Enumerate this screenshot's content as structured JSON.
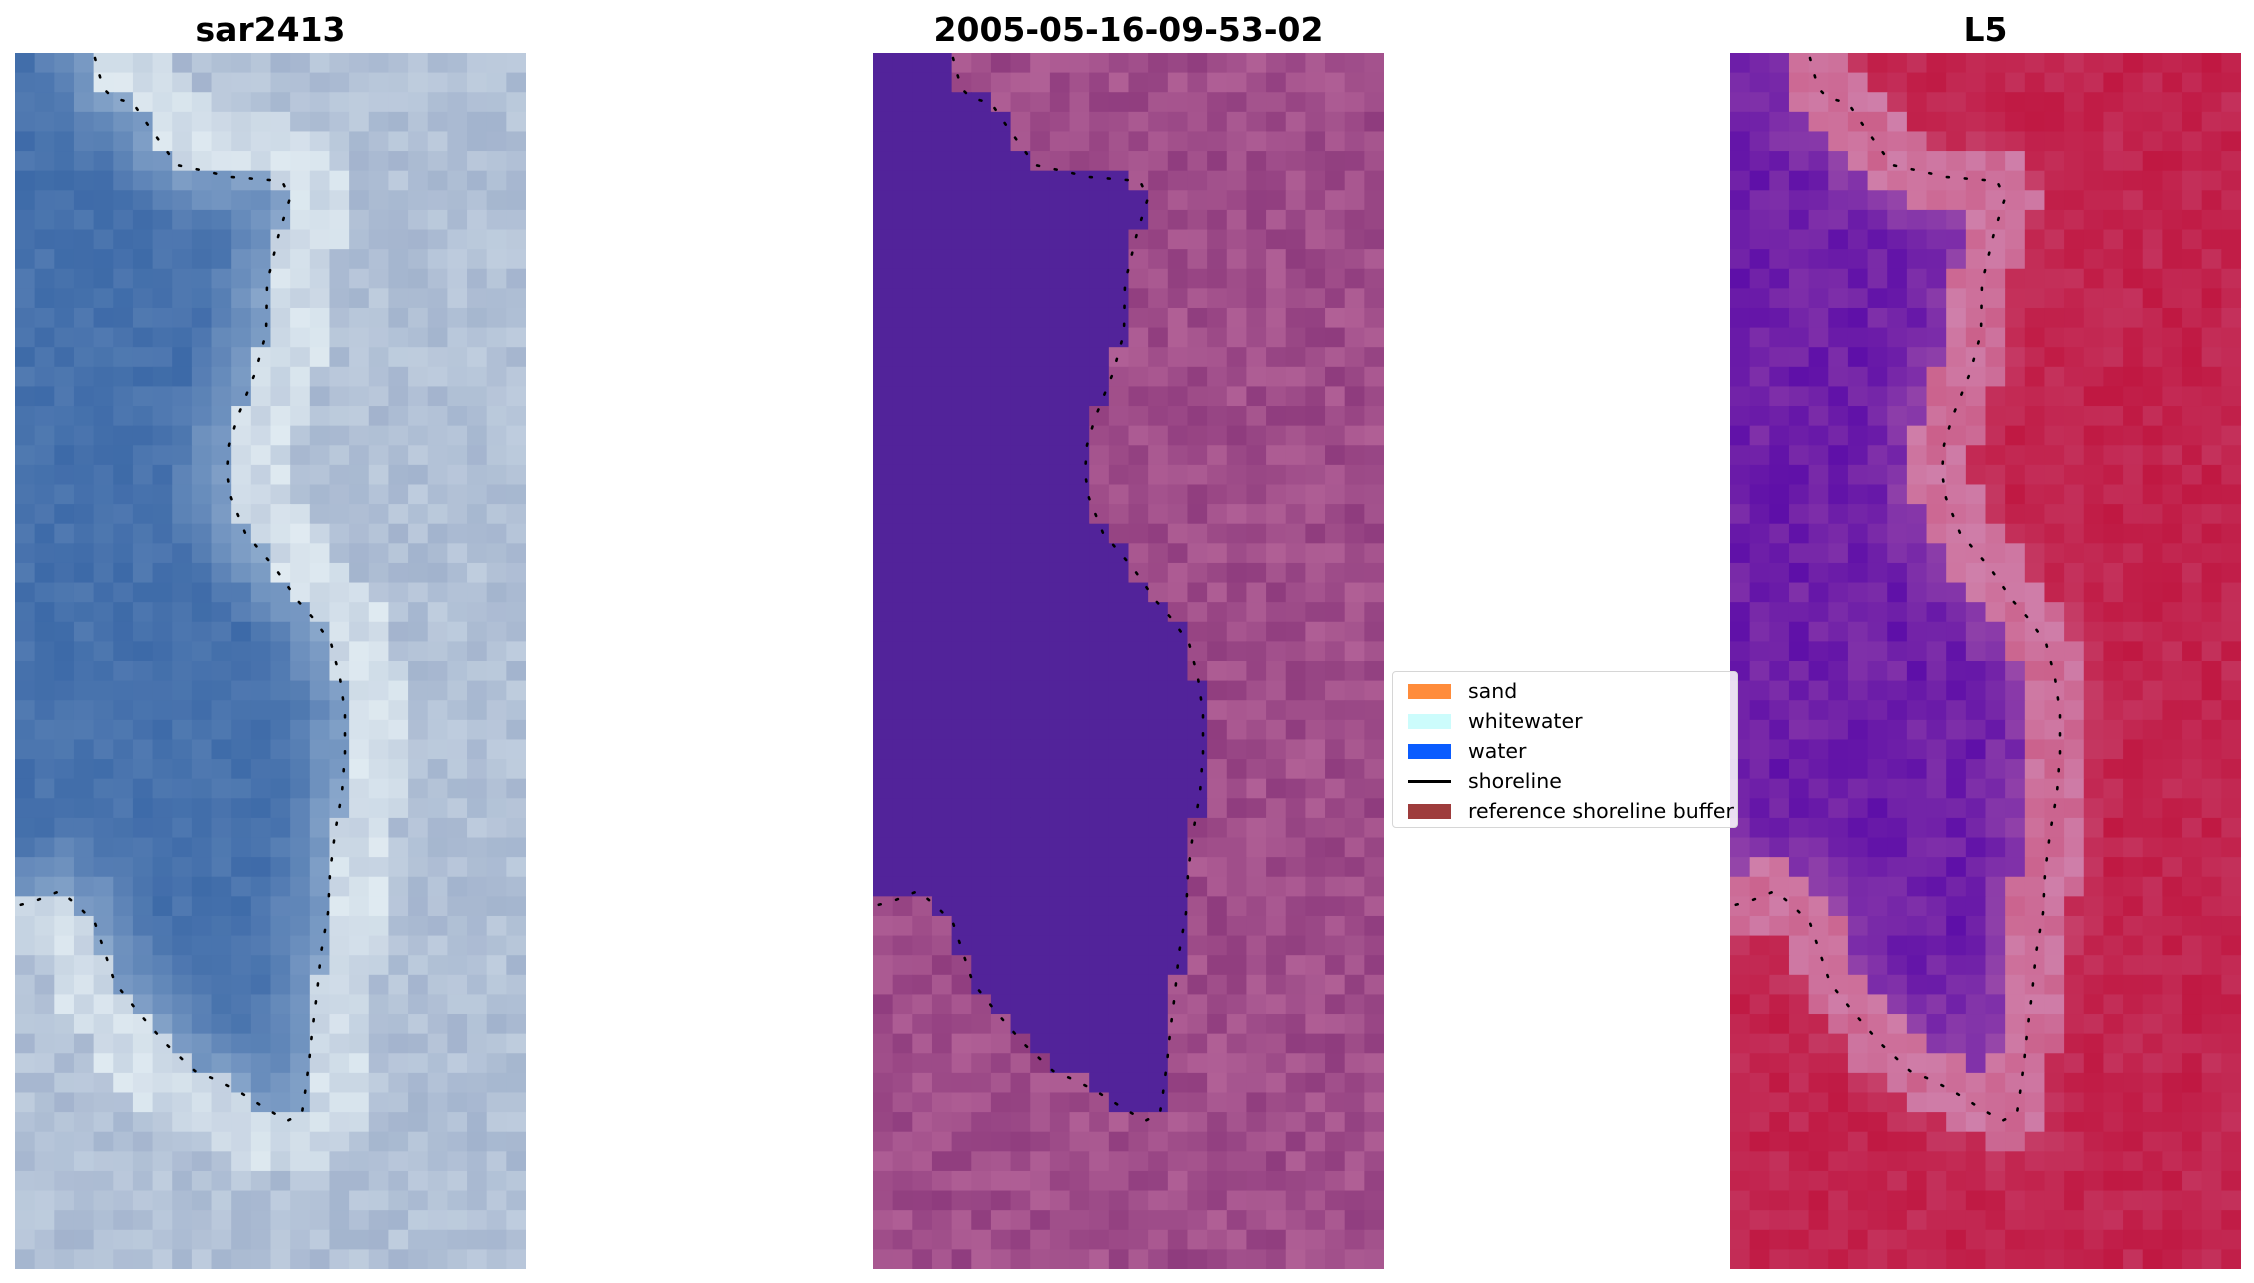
{
  "figure": {
    "panels": [
      {
        "title": "sar2413",
        "style": "rgb",
        "colors": {
          "sea": "#3d6aa8",
          "foam": "#e8f2f6",
          "land": "#96a8c6"
        }
      },
      {
        "title": "2005-05-16-09-53-02",
        "style": "classified",
        "colors": {
          "water": "#52239a",
          "land": "#8f3c7e",
          "bright": "#bf6fa0"
        }
      },
      {
        "title": "L5",
        "style": "index",
        "colors": {
          "water": "#5e0fa8",
          "edge": "#cf7faa",
          "land": "#c01842"
        }
      }
    ],
    "legend": {
      "entries": [
        {
          "label": "sand",
          "kind": "patch",
          "color": "#ff8c3b"
        },
        {
          "label": "whitewater",
          "kind": "patch",
          "color": "#ccfcfc"
        },
        {
          "label": "water",
          "kind": "patch",
          "color": "#0a5cff"
        },
        {
          "label": "shoreline",
          "kind": "line",
          "color": "#000000"
        },
        {
          "label": "reference shoreline buffer",
          "kind": "patch",
          "color": "#9e3c3c"
        }
      ]
    }
  }
}
